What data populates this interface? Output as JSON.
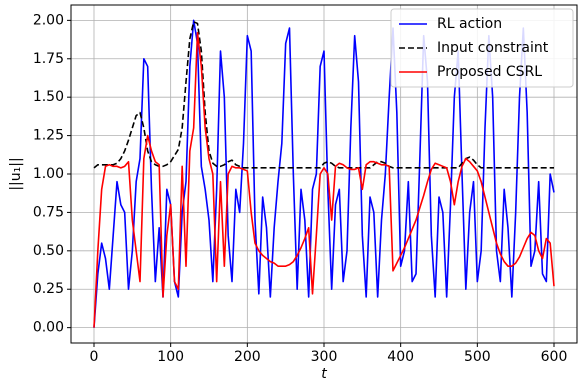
{
  "chart_data": {
    "type": "line",
    "x_label": "t",
    "y_label": "||u₁||",
    "x": [
      0,
      5,
      10,
      15,
      20,
      25,
      30,
      35,
      40,
      45,
      50,
      55,
      60,
      65,
      70,
      75,
      80,
      85,
      90,
      95,
      100,
      105,
      110,
      115,
      120,
      125,
      130,
      135,
      140,
      145,
      150,
      155,
      160,
      165,
      170,
      175,
      180,
      185,
      190,
      195,
      200,
      205,
      210,
      215,
      220,
      225,
      230,
      235,
      240,
      245,
      250,
      255,
      260,
      265,
      270,
      275,
      280,
      285,
      290,
      295,
      300,
      305,
      310,
      315,
      320,
      325,
      330,
      335,
      340,
      345,
      350,
      355,
      360,
      365,
      370,
      375,
      380,
      385,
      390,
      395,
      400,
      405,
      410,
      415,
      420,
      425,
      430,
      435,
      440,
      445,
      450,
      455,
      460,
      465,
      470,
      475,
      480,
      485,
      490,
      495,
      500,
      505,
      510,
      515,
      520,
      525,
      530,
      535,
      540,
      545,
      550,
      555,
      560,
      565,
      570,
      575,
      580,
      585,
      590,
      595,
      600
    ],
    "series": [
      {
        "name": "RL action",
        "color": "#0000ff",
        "linestyle": "solid",
        "values": [
          0,
          0.35,
          0.55,
          0.45,
          0.25,
          0.6,
          0.95,
          0.8,
          0.75,
          0.25,
          0.5,
          0.95,
          1.1,
          1.75,
          1.7,
          0.9,
          0.3,
          0.65,
          0.2,
          0.9,
          0.8,
          0.3,
          0.2,
          0.75,
          0.95,
          1.7,
          2.0,
          1.85,
          1.05,
          0.9,
          0.7,
          0.3,
          0.9,
          1.8,
          1.5,
          0.6,
          0.3,
          0.9,
          0.75,
          1.2,
          1.9,
          1.8,
          0.7,
          0.22,
          0.85,
          0.65,
          0.2,
          0.65,
          0.95,
          1.2,
          1.85,
          1.95,
          1.0,
          0.25,
          0.9,
          0.7,
          0.2,
          0.9,
          1.0,
          1.7,
          1.8,
          0.9,
          0.25,
          0.8,
          0.9,
          0.3,
          0.5,
          1.3,
          1.9,
          1.6,
          0.6,
          0.2,
          0.85,
          0.75,
          0.2,
          0.7,
          1.0,
          1.5,
          1.95,
          1.4,
          0.4,
          0.5,
          0.95,
          0.3,
          0.35,
          1.1,
          1.9,
          1.6,
          0.6,
          0.2,
          0.85,
          0.75,
          0.2,
          0.8,
          1.5,
          1.8,
          1.0,
          0.25,
          0.75,
          0.95,
          0.3,
          0.5,
          1.3,
          1.9,
          1.5,
          0.5,
          0.3,
          0.9,
          0.65,
          0.2,
          0.75,
          1.5,
          1.95,
          1.4,
          0.4,
          0.5,
          0.95,
          0.35,
          0.3,
          1.0,
          0.88
        ]
      },
      {
        "name": "Input constraint",
        "color": "#000000",
        "linestyle": "dashed",
        "values": [
          1.04,
          1.06,
          1.06,
          1.06,
          1.06,
          1.06,
          1.07,
          1.1,
          1.15,
          1.22,
          1.3,
          1.38,
          1.4,
          1.3,
          1.15,
          1.08,
          1.06,
          1.05,
          1.05,
          1.06,
          1.08,
          1.12,
          1.16,
          1.3,
          1.6,
          1.88,
          1.99,
          1.98,
          1.8,
          1.4,
          1.15,
          1.07,
          1.05,
          1.05,
          1.06,
          1.08,
          1.09,
          1.06,
          1.05,
          1.04,
          1.04,
          1.04,
          1.04,
          1.04,
          1.04,
          1.04,
          1.04,
          1.04,
          1.04,
          1.04,
          1.04,
          1.04,
          1.04,
          1.04,
          1.04,
          1.04,
          1.04,
          1.04,
          1.04,
          1.04,
          1.07,
          1.08,
          1.07,
          1.05,
          1.04,
          1.04,
          1.04,
          1.04,
          1.04,
          1.04,
          1.04,
          1.04,
          1.04,
          1.06,
          1.08,
          1.08,
          1.07,
          1.05,
          1.04,
          1.04,
          1.04,
          1.04,
          1.04,
          1.04,
          1.04,
          1.04,
          1.04,
          1.04,
          1.04,
          1.04,
          1.04,
          1.04,
          1.04,
          1.04,
          1.04,
          1.04,
          1.07,
          1.1,
          1.11,
          1.09,
          1.06,
          1.04,
          1.04,
          1.04,
          1.04,
          1.04,
          1.04,
          1.04,
          1.04,
          1.04,
          1.04,
          1.04,
          1.04,
          1.04,
          1.04,
          1.04,
          1.04,
          1.04,
          1.04,
          1.04,
          1.04
        ]
      },
      {
        "name": "Proposed CSRL",
        "color": "#ff0000",
        "linestyle": "solid",
        "values": [
          0,
          0.5,
          0.9,
          1.05,
          1.06,
          1.05,
          1.05,
          1.04,
          1.05,
          1.08,
          0.7,
          0.5,
          0.3,
          1.1,
          1.25,
          1.15,
          1.08,
          1.06,
          0.2,
          0.6,
          0.8,
          0.3,
          0.25,
          1.05,
          0.4,
          1.15,
          1.3,
          1.92,
          1.7,
          1.3,
          1.1,
          1.0,
          0.3,
          0.95,
          0.4,
          1.0,
          1.05,
          1.04,
          1.04,
          1.03,
          1.02,
          0.75,
          0.55,
          0.5,
          0.47,
          0.45,
          0.43,
          0.42,
          0.4,
          0.4,
          0.4,
          0.41,
          0.43,
          0.47,
          0.52,
          0.58,
          0.65,
          0.22,
          0.6,
          1.0,
          1.04,
          1.0,
          0.7,
          1.05,
          1.07,
          1.06,
          1.04,
          1.03,
          1.03,
          1.04,
          0.9,
          1.06,
          1.08,
          1.08,
          1.07,
          1.06,
          1.06,
          1.05,
          0.37,
          0.42,
          0.47,
          0.52,
          0.58,
          0.64,
          0.7,
          0.78,
          0.86,
          0.95,
          1.03,
          1.07,
          1.06,
          1.05,
          1.04,
          0.95,
          0.8,
          0.95,
          1.05,
          1.1,
          1.08,
          1.05,
          1.02,
          0.95,
          0.85,
          0.75,
          0.65,
          0.55,
          0.48,
          0.43,
          0.4,
          0.4,
          0.42,
          0.46,
          0.52,
          0.58,
          0.62,
          0.6,
          0.5,
          0.45,
          0.58,
          0.55,
          0.27
        ]
      }
    ],
    "xlim": [
      -30,
      630
    ],
    "ylim": [
      -0.1,
      2.1
    ],
    "xticks": [
      0,
      100,
      200,
      300,
      400,
      500,
      600
    ],
    "yticks": [
      {
        "value": 0,
        "label": "0.00"
      },
      {
        "value": 0.25,
        "label": "0.25"
      },
      {
        "value": 0.5,
        "label": "0.50"
      },
      {
        "value": 0.75,
        "label": "0.75"
      },
      {
        "value": 1,
        "label": "1.00"
      },
      {
        "value": 1.25,
        "label": "1.25"
      },
      {
        "value": 1.5,
        "label": "1.50"
      },
      {
        "value": 1.75,
        "label": "1.75"
      },
      {
        "value": 2,
        "label": "2.00"
      }
    ],
    "grid": true,
    "legend": "upper right"
  }
}
